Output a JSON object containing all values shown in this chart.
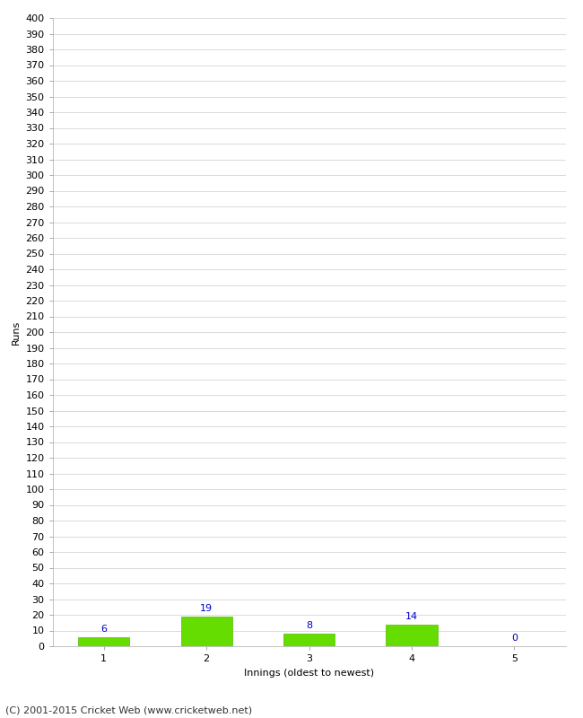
{
  "categories": [
    1,
    2,
    3,
    4,
    5
  ],
  "values": [
    6,
    19,
    8,
    14,
    0
  ],
  "bar_color": "#66dd00",
  "bar_edgecolor": "#55bb00",
  "label_color": "#0000cc",
  "xlabel": "Innings (oldest to newest)",
  "ylabel": "Runs",
  "ylim": [
    0,
    400
  ],
  "yticks": [
    0,
    10,
    20,
    30,
    40,
    50,
    60,
    70,
    80,
    90,
    100,
    110,
    120,
    130,
    140,
    150,
    160,
    170,
    180,
    190,
    200,
    210,
    220,
    230,
    240,
    250,
    260,
    270,
    280,
    290,
    300,
    310,
    320,
    330,
    340,
    350,
    360,
    370,
    380,
    390,
    400
  ],
  "footer": "(C) 2001-2015 Cricket Web (www.cricketweb.net)",
  "background_color": "#ffffff",
  "grid_color": "#cccccc",
  "label_fontsize": 8,
  "footer_fontsize": 8,
  "axis_fontsize": 8,
  "ylabel_fontsize": 8,
  "xlabel_fontsize": 8,
  "bar_width": 0.5
}
